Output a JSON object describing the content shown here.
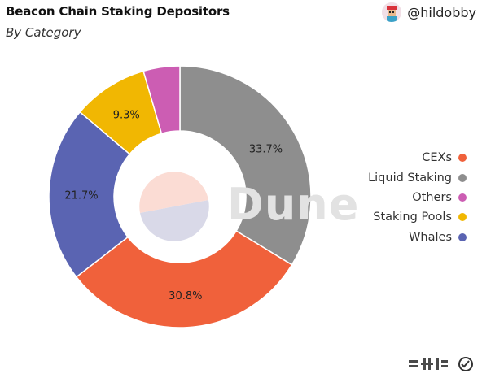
{
  "header": {
    "title": "Beacon Chain Staking Depositors",
    "subtitle": "By Category",
    "author": "@hildobby"
  },
  "watermark": "Dune",
  "colors": {
    "CEXs": "#f0613b",
    "Liquid Staking": "#8e8e8e",
    "Others": "#cc5db3",
    "Staking Pools": "#f1b702",
    "Whales": "#5a64b2"
  },
  "chart_data": {
    "type": "pie",
    "donut": true,
    "title": "Beacon Chain Staking Depositors",
    "subtitle": "By Category",
    "slices": [
      {
        "label": "Liquid Staking",
        "value": 33.7,
        "display": "33.7%"
      },
      {
        "label": "CEXs",
        "value": 30.8,
        "display": "30.8%"
      },
      {
        "label": "Whales",
        "value": 21.7,
        "display": "21.7%"
      },
      {
        "label": "Staking Pools",
        "value": 9.3,
        "display": "9.3%"
      },
      {
        "label": "Others",
        "value": 4.5,
        "display": ""
      }
    ],
    "legend": {
      "placement": "right",
      "entries": [
        "CEXs",
        "Liquid Staking",
        "Others",
        "Staking Pools",
        "Whales"
      ]
    }
  }
}
